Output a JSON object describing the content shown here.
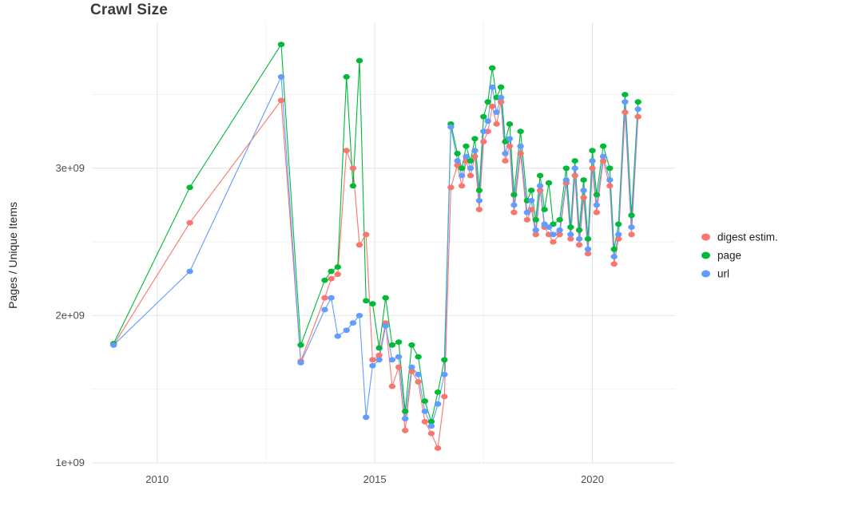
{
  "chart_data": {
    "type": "line",
    "title": "Crawl Size",
    "xlabel": "",
    "ylabel": "Pages / Unique Items",
    "y_unit": "items (billions, 1e9)",
    "x_unit": "year (decimal)",
    "grid": true,
    "legend_position": "right",
    "xlim": [
      2008.5,
      2021.9
    ],
    "ylim": [
      1.0,
      3.99
    ],
    "x_tick_values": [
      2010,
      2015,
      2020
    ],
    "x_tick_labels": [
      "2010",
      "2015",
      "2020"
    ],
    "x_minor": [
      2012.5,
      2017.5
    ],
    "y_tick_values": [
      1,
      2,
      3
    ],
    "y_tick_labels": [
      "1e+09",
      "2e+09",
      "3e+09"
    ],
    "y_minor": [
      1.5,
      2.5,
      3.5
    ],
    "x": [
      2009.0,
      2010.75,
      2012.85,
      2013.3,
      2013.85,
      2014.0,
      2014.15,
      2014.35,
      2014.5,
      2014.65,
      2014.8,
      2014.95,
      2015.1,
      2015.25,
      2015.4,
      2015.55,
      2015.7,
      2015.85,
      2016.0,
      2016.15,
      2016.3,
      2016.45,
      2016.6,
      2016.75,
      2016.9,
      2017.0,
      2017.1,
      2017.2,
      2017.3,
      2017.4,
      2017.5,
      2017.6,
      2017.7,
      2017.8,
      2017.9,
      2018.0,
      2018.1,
      2018.2,
      2018.35,
      2018.5,
      2018.6,
      2018.7,
      2018.8,
      2018.9,
      2019.0,
      2019.1,
      2019.25,
      2019.4,
      2019.5,
      2019.6,
      2019.7,
      2019.8,
      2019.9,
      2020.0,
      2020.1,
      2020.25,
      2020.4,
      2020.5,
      2020.6,
      2020.75,
      2020.9,
      2021.05
    ],
    "series": [
      {
        "name": "digest estim.",
        "color": "#F8766D",
        "values": [
          1.8,
          2.63,
          3.46,
          1.69,
          2.12,
          2.25,
          2.28,
          3.12,
          3.0,
          2.48,
          2.55,
          1.7,
          1.73,
          1.95,
          1.52,
          1.65,
          1.22,
          1.62,
          1.55,
          1.28,
          1.2,
          1.1,
          1.45,
          2.87,
          3.02,
          2.88,
          3.05,
          2.95,
          3.08,
          2.72,
          3.18,
          3.25,
          3.42,
          3.3,
          3.45,
          3.05,
          3.15,
          2.7,
          3.1,
          2.65,
          2.72,
          2.55,
          2.85,
          2.6,
          2.55,
          2.5,
          2.55,
          2.9,
          2.52,
          2.95,
          2.48,
          2.8,
          2.42,
          3.0,
          2.7,
          3.05,
          2.88,
          2.35,
          2.52,
          3.38,
          2.55,
          3.35
        ]
      },
      {
        "name": "page",
        "color": "#00BA38",
        "values": [
          1.81,
          2.87,
          3.84,
          1.8,
          2.24,
          2.3,
          2.33,
          3.62,
          2.88,
          3.73,
          2.1,
          2.08,
          1.78,
          2.12,
          1.8,
          1.82,
          1.35,
          1.8,
          1.72,
          1.42,
          1.28,
          1.48,
          1.7,
          3.3,
          3.1,
          3.0,
          3.15,
          3.05,
          3.2,
          2.85,
          3.35,
          3.45,
          3.68,
          3.48,
          3.55,
          3.18,
          3.3,
          2.82,
          3.25,
          2.78,
          2.85,
          2.65,
          2.95,
          2.72,
          2.9,
          2.62,
          2.65,
          3.0,
          2.6,
          3.05,
          2.58,
          2.92,
          2.52,
          3.12,
          2.82,
          3.15,
          3.0,
          2.45,
          2.62,
          3.5,
          2.68,
          3.45
        ]
      },
      {
        "name": "url",
        "color": "#619CFF",
        "values": [
          1.8,
          2.3,
          3.62,
          1.68,
          2.04,
          2.12,
          1.86,
          1.9,
          1.95,
          2.0,
          1.31,
          1.66,
          1.7,
          1.93,
          1.7,
          1.72,
          1.3,
          1.65,
          1.6,
          1.35,
          1.25,
          1.4,
          1.6,
          3.28,
          3.05,
          2.95,
          3.08,
          3.0,
          3.12,
          2.78,
          3.25,
          3.32,
          3.55,
          3.38,
          3.48,
          3.1,
          3.2,
          2.75,
          3.15,
          2.7,
          2.78,
          2.58,
          2.88,
          2.62,
          2.6,
          2.55,
          2.58,
          2.92,
          2.55,
          3.0,
          2.52,
          2.85,
          2.45,
          3.05,
          2.75,
          3.08,
          2.92,
          2.4,
          2.55,
          3.45,
          2.6,
          3.4
        ]
      }
    ]
  },
  "colors": {
    "grid_major": "#e4e4e4",
    "grid_minor": "#f2f2f2",
    "background": "#ffffff"
  }
}
